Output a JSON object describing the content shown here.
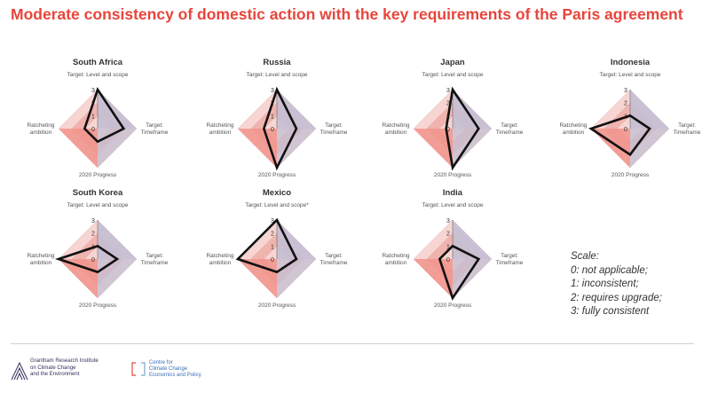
{
  "title": "Moderate consistency of domestic action with the key requirements of the Paris agreement",
  "colors": {
    "title": "#e8453c",
    "scale_fill_light": "#f7d5d2",
    "scale_fill_mid": "#f0b3ae",
    "target_quadrant": "#c3bfd3",
    "progress_quadrant": "#f1938c",
    "data_line": "#111111"
  },
  "chart_data": [
    {
      "type": "radar",
      "title": "South Africa",
      "axes": [
        "Target: Level and scope",
        "Target: Timeframe",
        "2020 Progress",
        "Ratcheting ambition"
      ],
      "ticks": [
        "3",
        "2",
        "1",
        "0"
      ],
      "rmax": 3,
      "values": [
        3,
        2,
        1,
        1
      ]
    },
    {
      "type": "radar",
      "title": "Russia",
      "axes": [
        "Target: Level and scope",
        "Target: Timeframe",
        "2020 Progress",
        "Ratcheting ambition"
      ],
      "ticks": [
        "3",
        "2",
        "1",
        "0"
      ],
      "rmax": 3,
      "values": [
        3,
        1.5,
        3,
        1
      ]
    },
    {
      "type": "radar",
      "title": "Japan",
      "axes": [
        "Target: Level and scope",
        "Target: Timeframe",
        "2020 Progress",
        "Ratcheting ambition"
      ],
      "ticks": [
        "3",
        "2",
        "1",
        "0"
      ],
      "rmax": 3,
      "values": [
        3,
        2,
        3,
        0.5
      ]
    },
    {
      "type": "radar",
      "title": "Indonesia",
      "axes": [
        "Target: Level and scope",
        "Target: Timeframe",
        "2020 Progress",
        "Ratcheting ambition"
      ],
      "ticks": [
        "3",
        "2",
        "1",
        "0"
      ],
      "rmax": 3,
      "values": [
        1,
        1.5,
        2,
        3
      ]
    },
    {
      "type": "radar",
      "title": "South Korea",
      "axes": [
        "Target: Level and scope",
        "Target: Timeframe",
        "2020 Progress",
        "Ratcheting ambition"
      ],
      "ticks": [
        "3",
        "2",
        "1",
        "0"
      ],
      "rmax": 3,
      "values": [
        1,
        1.5,
        1,
        3
      ]
    },
    {
      "type": "radar",
      "title": "Mexico",
      "axes": [
        "Target: Level and scope*",
        "Target: Timeframe",
        "2020 Progress",
        "Ratcheting ambition"
      ],
      "ticks": [
        "3",
        "2",
        "1",
        "0"
      ],
      "rmax": 3,
      "values": [
        3,
        1.5,
        1,
        3
      ]
    },
    {
      "type": "radar",
      "title": "India",
      "axes": [
        "Target: Level and scope",
        "Target: Timeframe",
        "2020 Progress",
        "Ratcheting ambition"
      ],
      "ticks": [
        "3",
        "2",
        "1",
        "0"
      ],
      "rmax": 3,
      "values": [
        1,
        2,
        3,
        1
      ]
    }
  ],
  "scale": {
    "heading": "Scale:",
    "items": [
      "0: not applicable;",
      "1: inconsistent;",
      "2: requires upgrade;",
      "3: fully consistent"
    ]
  },
  "footer": {
    "logo1_lines": [
      "Grantham Research Institute",
      "on Climate Change",
      "and the Environment"
    ],
    "logo2_lines": [
      "Centre for",
      "Climate Change",
      "Economics and Policy"
    ]
  }
}
